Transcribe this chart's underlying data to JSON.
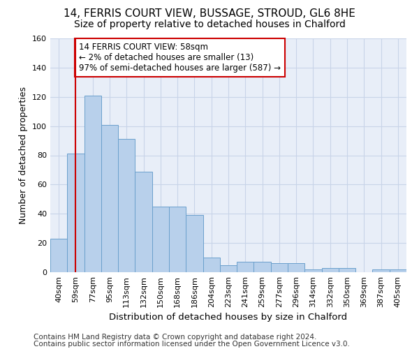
{
  "title1": "14, FERRIS COURT VIEW, BUSSAGE, STROUD, GL6 8HE",
  "title2": "Size of property relative to detached houses in Chalford",
  "xlabel": "Distribution of detached houses by size in Chalford",
  "ylabel": "Number of detached properties",
  "footer1": "Contains HM Land Registry data © Crown copyright and database right 2024.",
  "footer2": "Contains public sector information licensed under the Open Government Licence v3.0.",
  "annotation_line1": "14 FERRIS COURT VIEW: 58sqm",
  "annotation_line2": "← 2% of detached houses are smaller (13)",
  "annotation_line3": "97% of semi-detached houses are larger (587) →",
  "bar_labels": [
    "40sqm",
    "59sqm",
    "77sqm",
    "95sqm",
    "113sqm",
    "132sqm",
    "150sqm",
    "168sqm",
    "186sqm",
    "204sqm",
    "223sqm",
    "241sqm",
    "259sqm",
    "277sqm",
    "296sqm",
    "314sqm",
    "332sqm",
    "350sqm",
    "369sqm",
    "387sqm",
    "405sqm"
  ],
  "bar_values": [
    23,
    81,
    121,
    101,
    91,
    69,
    45,
    45,
    39,
    10,
    5,
    7,
    7,
    6,
    6,
    2,
    3,
    3,
    0,
    2,
    2
  ],
  "bar_color": "#b8d0eb",
  "bar_edge_color": "#6aa0cc",
  "vline_color": "#cc0000",
  "vline_x": 1.0,
  "annotation_box_color": "#cc0000",
  "ylim": [
    0,
    160
  ],
  "yticks": [
    0,
    20,
    40,
    60,
    80,
    100,
    120,
    140,
    160
  ],
  "grid_color": "#c8d4e8",
  "bg_color": "#e8eef8",
  "title1_fontsize": 11,
  "title2_fontsize": 10,
  "tick_fontsize": 8,
  "ylabel_fontsize": 9,
  "xlabel_fontsize": 9.5,
  "footer_fontsize": 7.5,
  "annot_fontsize": 8.5
}
